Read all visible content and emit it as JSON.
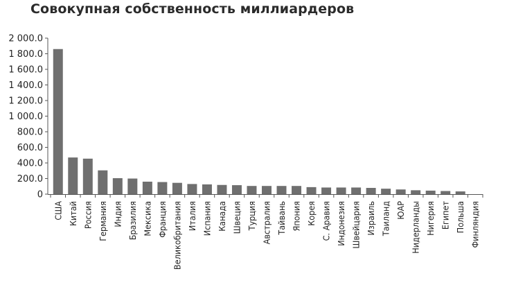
{
  "chart_data": {
    "type": "bar",
    "title": "Совокупная собственность миллиардеров",
    "xlabel": "",
    "ylabel": "",
    "ylim": [
      0,
      2000
    ],
    "yticks": [
      "0",
      "200.0",
      "400.0",
      "600.0",
      "800.0",
      "1 000.0",
      "1 200.0",
      "1 400.0",
      "1 600.0",
      "1 800.0",
      "2 000.0"
    ],
    "grid": false,
    "legend": "none",
    "bar_color": "#6f6f6f",
    "categories": [
      "США",
      "Китай",
      "Россия",
      "Германия",
      "Индия",
      "Бразилия",
      "Мексика",
      "Франция",
      "Великобритания",
      "Италия",
      "Испания",
      "Канада",
      "Швеция",
      "Турция",
      "Австралия",
      "Тайвань",
      "Япония",
      "Корея",
      "С. Аравия",
      "Индонезия",
      "Швейцария",
      "Израиль",
      "Таиланд",
      "ЮАР",
      "Нидерланды",
      "Нигерия",
      "Египет",
      "Польша",
      "Финляндия"
    ],
    "values": [
      1860,
      470,
      455,
      305,
      205,
      200,
      160,
      155,
      145,
      130,
      125,
      118,
      115,
      105,
      105,
      105,
      105,
      90,
      85,
      85,
      85,
      80,
      70,
      60,
      50,
      45,
      40,
      35,
      0
    ]
  }
}
